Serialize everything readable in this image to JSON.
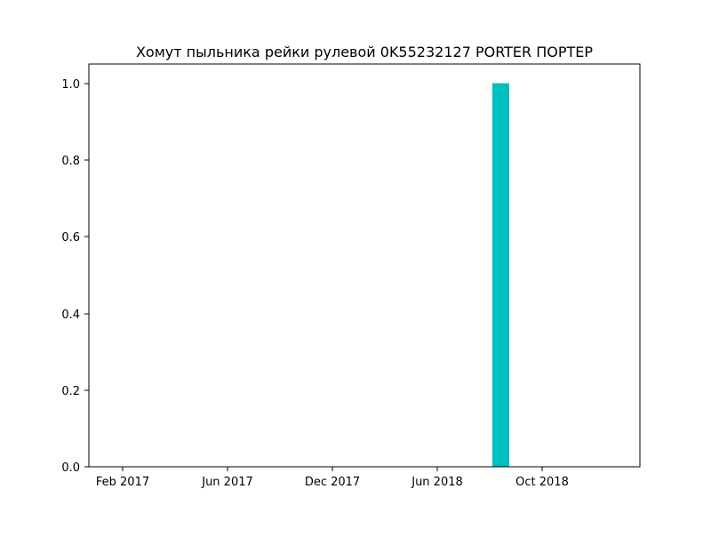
{
  "chart_data": {
    "type": "bar",
    "title": "Хомут пыльника рейки рулевой 0K55232127 PORTER ПОРТЕР",
    "xlabel": "",
    "ylabel": "",
    "x_tick_labels": [
      "Feb 2017",
      "Jun 2017",
      "Dec 2017",
      "Jun 2018",
      "Oct 2018"
    ],
    "y_tick_labels": [
      "0.0",
      "0.2",
      "0.4",
      "0.6",
      "0.8",
      "1.0"
    ],
    "ylim": [
      0,
      1.05
    ],
    "grid": false,
    "legend": "none",
    "bars": [
      {
        "x": "Aug 2018",
        "value": 1.0
      }
    ],
    "colors": {
      "bar": "#00bfbf",
      "axis": "#000000"
    }
  }
}
